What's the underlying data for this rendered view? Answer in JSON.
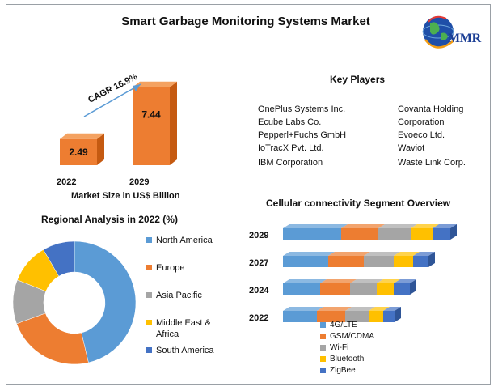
{
  "header": {
    "title": "Smart Garbage Monitoring Systems Market",
    "logo_text": "MMR"
  },
  "colors": {
    "bar_front": "#ed7d31",
    "bar_side": "#c55a11",
    "bar_top": "#f4a261",
    "arrow": "#5b9bd5",
    "donut_na": "#5b9bd5",
    "donut_eu": "#ed7d31",
    "donut_ap": "#a5a5a5",
    "donut_mea": "#ffc000",
    "donut_sa": "#4472c4",
    "seg_4g": "#5b9bd5",
    "seg_gsm": "#ed7d31",
    "seg_wifi": "#a5a5a5",
    "seg_bt": "#ffc000",
    "seg_zig": "#4472c4"
  },
  "chart_data": [
    {
      "type": "bar",
      "title": "Market Size in US$ Billion",
      "categories": [
        "2022",
        "2029"
      ],
      "values": [
        2.49,
        7.44
      ],
      "value_labels": [
        "2.49",
        "7.44"
      ],
      "xlabel": "Market Size in US$ Billion",
      "annotation": "CAGR 16.9%",
      "ylim": [
        0,
        8.5
      ]
    },
    {
      "type": "pie",
      "title": "Regional Analysis in 2022 (%)",
      "labels": [
        "North America",
        "Europe",
        "Asia Pacific",
        "Middle East & Africa",
        "South America"
      ],
      "values": [
        44,
        22,
        11,
        10,
        8
      ]
    },
    {
      "type": "bar",
      "orientation": "horizontal",
      "stacked": true,
      "title": "Cellular connectivity Segment Overview",
      "categories": [
        "2029",
        "2027",
        "2024",
        "2022"
      ],
      "series": [
        {
          "name": "4G/LTE",
          "values": [
            72,
            56,
            46,
            42
          ]
        },
        {
          "name": "GSM/CDMA",
          "values": [
            46,
            44,
            37,
            35
          ]
        },
        {
          "name": "Wi-Fi",
          "values": [
            40,
            37,
            33,
            29
          ]
        },
        {
          "name": "Bluetooth",
          "values": [
            27,
            24,
            21,
            18
          ]
        },
        {
          "name": "ZigBee",
          "values": [
            22,
            19,
            20,
            14
          ]
        }
      ]
    }
  ],
  "bar_years": [
    "2022",
    "2029"
  ],
  "key_players": {
    "title": "Key Players",
    "left": [
      "OnePlus Systems Inc.",
      "Ecube Labs Co.",
      "Pepperl+Fuchs GmbH",
      "IoTracX Pvt. Ltd.",
      "IBM Corporation"
    ],
    "right": [
      "Covanta Holding",
      "Corporation",
      "Evoeco Ltd.",
      "Waviot",
      "Waste Link Corp."
    ]
  },
  "regional": {
    "legend": [
      "North America",
      "Europe",
      "Asia Pacific",
      "Middle East &",
      "Africa",
      "South America"
    ]
  }
}
